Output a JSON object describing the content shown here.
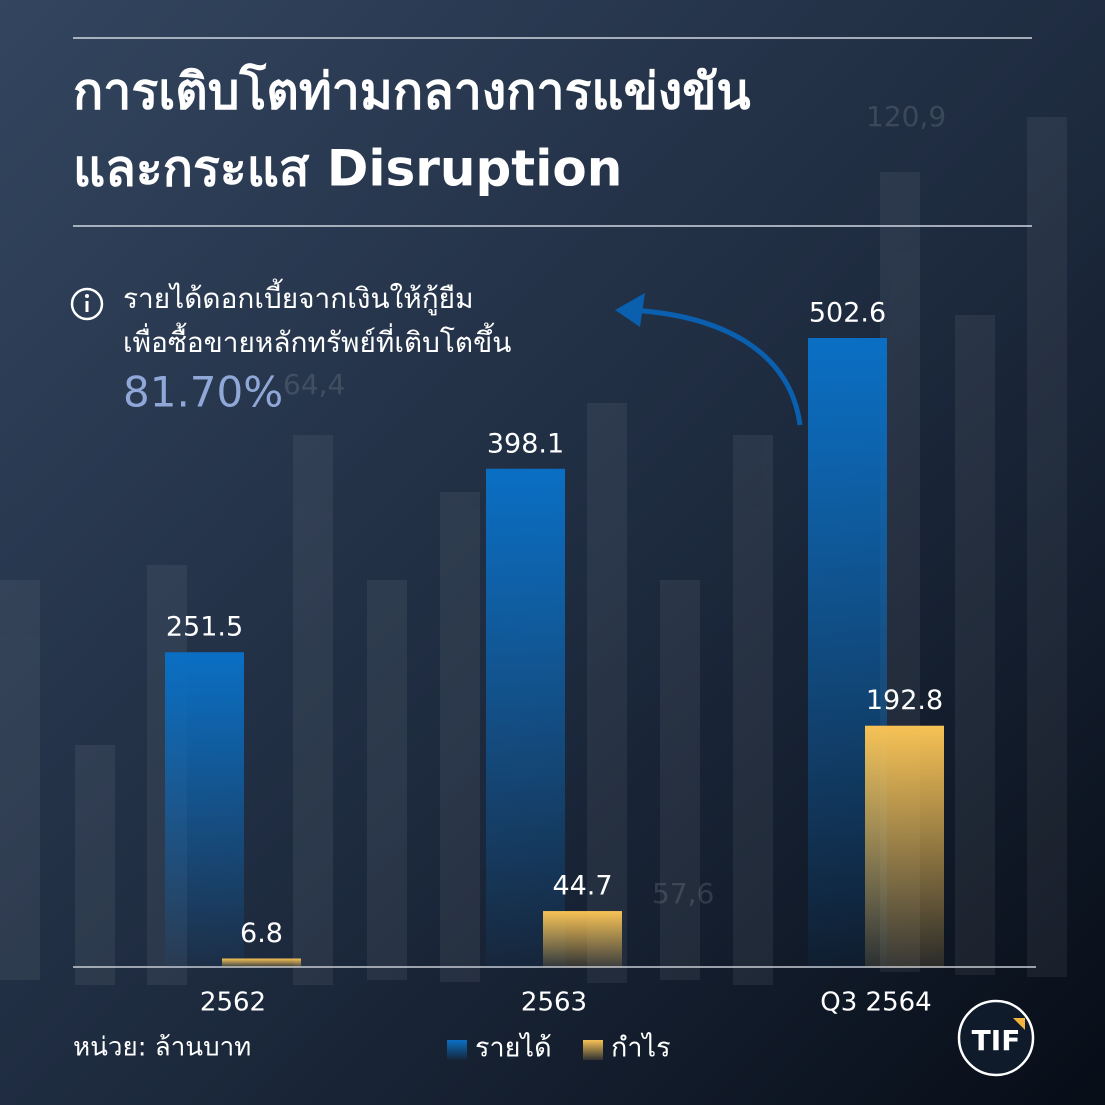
{
  "chart_data": {
    "type": "bar",
    "title": [
      "การเติบโตท่ามกลางการแข่งขัน",
      "และกระแส Disruption"
    ],
    "annotation": [
      "รายได้ดอกเบี้ยจากเงินให้กู้ยืม",
      "เพื่อซื้อขายหลักทรัพย์ที่เติบโตขึ้น",
      "81.70%"
    ],
    "unit_label": "หน่วย: ล้านบาท",
    "logo": "TIF",
    "decor_labels": [
      "120,9",
      "64,4",
      "57,6"
    ],
    "categories": [
      "2562",
      "2563",
      "Q3 2564"
    ],
    "series": [
      {
        "name": "รายได้",
        "color": "#0a6fc4",
        "values": [
          251.5,
          398.1,
          502.6
        ]
      },
      {
        "name": "กำไร",
        "color": "#f7c255",
        "values": [
          6.8,
          44.7,
          192.8
        ]
      }
    ],
    "ylim": [
      0,
      500
    ]
  }
}
